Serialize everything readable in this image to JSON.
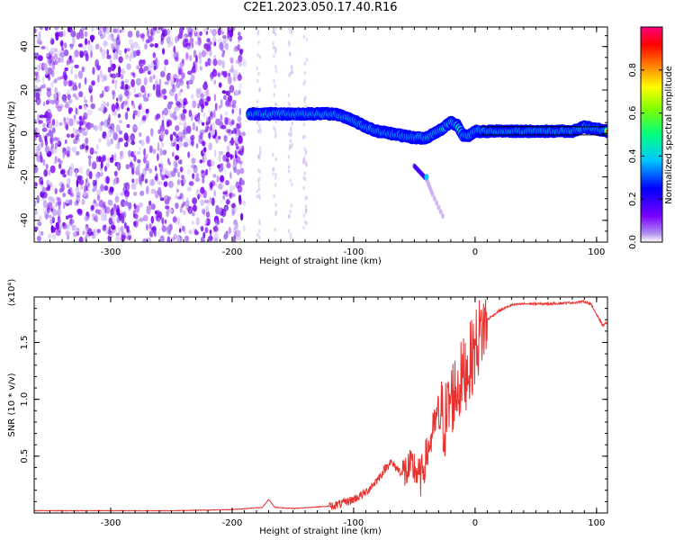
{
  "title": "C2E1.2023.050.17.40.R16",
  "colorbar": {
    "label": "Normalized spectral amplitude",
    "ticks": [
      "0.0",
      "0.2",
      "0.4",
      "0.6",
      "0.8"
    ],
    "tick_values": [
      0.0,
      0.2,
      0.4,
      0.6,
      0.8
    ]
  },
  "chart_data": [
    {
      "type": "heatmap",
      "xlabel": "Height of straight line (km)",
      "ylabel": "Frequency (Hz)",
      "xlim": [
        -363,
        109
      ],
      "ylim": [
        -50,
        49
      ],
      "xticks": [
        -300,
        -200,
        -100,
        0,
        100
      ],
      "xtick_labels": [
        "-300",
        "-200",
        "-100",
        "0",
        "100"
      ],
      "yticks": [
        -40,
        -20,
        0,
        20,
        40
      ],
      "ytick_labels": [
        "-40",
        "-20",
        "0",
        "20",
        "40"
      ],
      "colorscale": "rainbow (purple low to magenta high)",
      "zlim": [
        0,
        1
      ],
      "trace": {
        "description": "strong narrowband signal",
        "x": [
          -185,
          -170,
          -150,
          -130,
          -115,
          -100,
          -90,
          -80,
          -70,
          -60,
          -50,
          -40,
          -30,
          -20,
          -15,
          -10,
          -5,
          0,
          20,
          40,
          60,
          80,
          90,
          100,
          109
        ],
        "y": [
          9,
          9,
          9,
          9,
          9,
          6,
          3,
          1,
          0,
          -1,
          -2,
          -2,
          1,
          5,
          4,
          -1,
          -1,
          1,
          1,
          1,
          1,
          1,
          3,
          2,
          1
        ]
      },
      "noise_region_x": [
        -363,
        -190
      ],
      "secondary_trace": {
        "x": [
          -50,
          -45,
          -40,
          -35,
          -25
        ],
        "y": [
          -15,
          -18,
          -21,
          -28,
          -40
        ]
      }
    },
    {
      "type": "line",
      "xlabel": "Height of straight line (km)",
      "ylabel": "SNR (10 * v/v)",
      "y_multiplier": "(x10⁴)",
      "xlim": [
        -363,
        109
      ],
      "ylim": [
        0,
        1.9
      ],
      "xticks": [
        -300,
        -200,
        -100,
        0,
        100
      ],
      "xtick_labels": [
        "-300",
        "-200",
        "-100",
        "0",
        "100"
      ],
      "yticks": [
        0.5,
        1.0,
        1.5
      ],
      "ytick_labels": [
        "0.5",
        "1.0",
        "1.5"
      ],
      "series": [
        {
          "color": "#e8322f",
          "x": [
            -363,
            -300,
            -250,
            -200,
            -175,
            -170,
            -165,
            -150,
            -120,
            -110,
            -100,
            -90,
            -80,
            -70,
            -60,
            -50,
            -45,
            -40,
            -35,
            -30,
            -25,
            -20,
            -15,
            -10,
            -5,
            0,
            5,
            10,
            20,
            30,
            40,
            60,
            80,
            90,
            95,
            100,
            105,
            109
          ],
          "y": [
            0.02,
            0.02,
            0.02,
            0.03,
            0.05,
            0.12,
            0.05,
            0.04,
            0.06,
            0.08,
            0.12,
            0.18,
            0.3,
            0.45,
            0.35,
            0.4,
            0.3,
            0.5,
            0.7,
            0.9,
            0.8,
            1.0,
            1.1,
            1.2,
            1.3,
            1.45,
            1.6,
            1.7,
            1.78,
            1.83,
            1.84,
            1.84,
            1.85,
            1.86,
            1.84,
            1.75,
            1.65,
            1.68
          ],
          "spike_max": 1.88
        }
      ]
    }
  ]
}
